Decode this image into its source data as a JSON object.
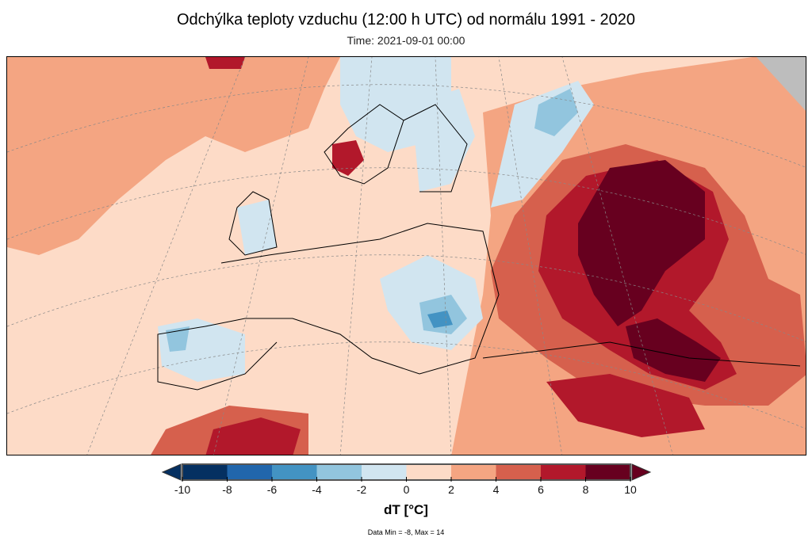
{
  "title": "Odchýlka teploty vzduchu (12:00 h UTC) od normálu 1991 - 2020",
  "subtitle": "Time: 2021-09-01 00:00",
  "colorbar": {
    "label": "dT [°C]",
    "ticks": [
      "-10",
      "-8",
      "-6",
      "-4",
      "-2",
      "0",
      "2",
      "4",
      "6",
      "8",
      "10"
    ],
    "colors": [
      "#053061",
      "#2166ac",
      "#4393c3",
      "#92c5de",
      "#d1e5f0",
      "#fddbc7",
      "#f4a582",
      "#d6604d",
      "#b2182b",
      "#67001f"
    ],
    "under_color": "#053061",
    "over_color": "#67001f"
  },
  "stats": "Data Min = -8, Max = 14"
}
